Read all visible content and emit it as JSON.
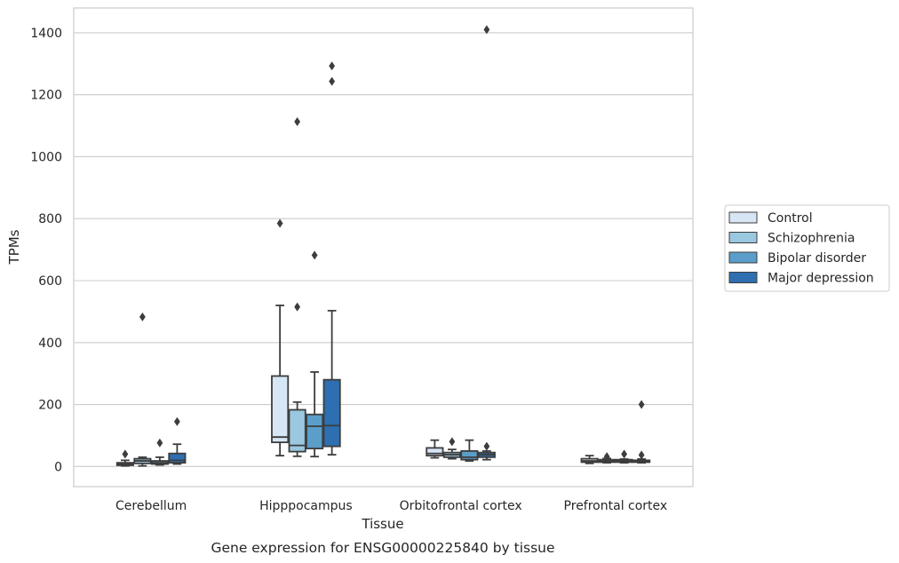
{
  "caption": "Gene expression for ENSG00000225840 by tissue",
  "chart_data": {
    "type": "box",
    "xlabel": "Tissue",
    "ylabel": "TPMs",
    "ylim": [
      -65,
      1480
    ],
    "yticks": [
      0,
      200,
      400,
      600,
      800,
      1000,
      1200,
      1400
    ],
    "grid": true,
    "legend_position": "right",
    "categories": [
      "Cerebellum",
      "Hipppocampus",
      "Orbitofrontal cortex",
      "Prefrontal cortex"
    ],
    "series": [
      {
        "name": "Control",
        "color": "#d6e6f4",
        "boxes": [
          {
            "whislo": 2,
            "q1": 4,
            "med": 7,
            "q3": 12,
            "whishi": 20,
            "fliers": [
              40
            ]
          },
          {
            "whislo": 35,
            "q1": 78,
            "med": 95,
            "q3": 292,
            "whishi": 520,
            "fliers": [
              785
            ]
          },
          {
            "whislo": 28,
            "q1": 35,
            "med": 42,
            "q3": 60,
            "whishi": 85,
            "fliers": []
          },
          {
            "whislo": 10,
            "q1": 14,
            "med": 18,
            "q3": 25,
            "whishi": 35,
            "fliers": []
          }
        ]
      },
      {
        "name": "Schizophrenia",
        "color": "#9ac8e0",
        "boxes": [
          {
            "whislo": 2,
            "q1": 10,
            "med": 18,
            "q3": 25,
            "whishi": 30,
            "fliers": [
              483
            ]
          },
          {
            "whislo": 33,
            "q1": 48,
            "med": 68,
            "q3": 183,
            "whishi": 208,
            "fliers": [
              515,
              1113
            ]
          },
          {
            "whislo": 25,
            "q1": 30,
            "med": 38,
            "q3": 45,
            "whishi": 55,
            "fliers": [
              80
            ]
          },
          {
            "whislo": 12,
            "q1": 14,
            "med": 18,
            "q3": 22,
            "whishi": 26,
            "fliers": [
              32
            ]
          }
        ]
      },
      {
        "name": "Bipolar disorder",
        "color": "#5a9ec9",
        "boxes": [
          {
            "whislo": 5,
            "q1": 8,
            "med": 12,
            "q3": 18,
            "whishi": 30,
            "fliers": [
              76
            ]
          },
          {
            "whislo": 32,
            "q1": 58,
            "med": 130,
            "q3": 168,
            "whishi": 305,
            "fliers": [
              682
            ]
          },
          {
            "whislo": 18,
            "q1": 22,
            "med": 30,
            "q3": 50,
            "whishi": 85,
            "fliers": []
          },
          {
            "whislo": 12,
            "q1": 14,
            "med": 18,
            "q3": 22,
            "whishi": 24,
            "fliers": [
              40
            ]
          }
        ]
      },
      {
        "name": "Major depression",
        "color": "#2e6fb1",
        "boxes": [
          {
            "whislo": 8,
            "q1": 12,
            "med": 20,
            "q3": 42,
            "whishi": 72,
            "fliers": [
              145
            ]
          },
          {
            "whislo": 38,
            "q1": 65,
            "med": 132,
            "q3": 280,
            "whishi": 503,
            "fliers": [
              1243,
              1293
            ]
          },
          {
            "whislo": 22,
            "q1": 30,
            "med": 38,
            "q3": 45,
            "whishi": 50,
            "fliers": [
              65,
              1410
            ]
          },
          {
            "whislo": 12,
            "q1": 14,
            "med": 16,
            "q3": 20,
            "whishi": 24,
            "fliers": [
              200,
              37
            ]
          }
        ]
      }
    ]
  }
}
